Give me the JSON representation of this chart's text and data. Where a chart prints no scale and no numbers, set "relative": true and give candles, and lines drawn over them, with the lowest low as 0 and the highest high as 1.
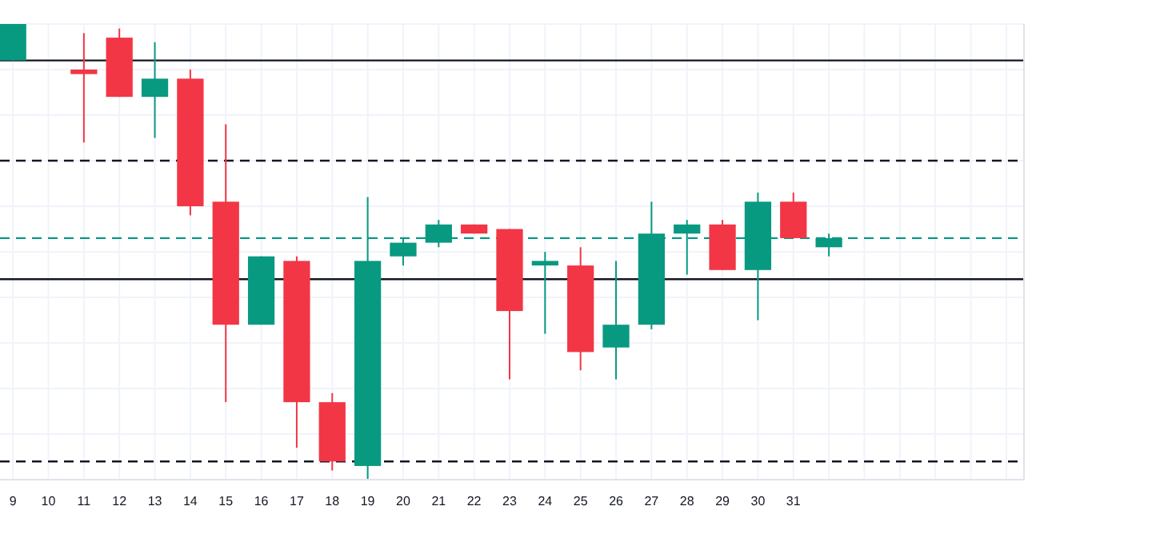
{
  "chart_data": {
    "type": "candlestick",
    "relative": true,
    "grid": true,
    "categories": [
      "9",
      "10",
      "11",
      "12",
      "13",
      "14",
      "15",
      "16",
      "17",
      "18",
      "19",
      "20",
      "21",
      "22",
      "23",
      "24",
      "25",
      "26",
      "27",
      "28",
      "29",
      "30",
      "31",
      null,
      null,
      null,
      null,
      null,
      null
    ],
    "ohlc": [
      [
        0.92,
        1.0,
        0.92,
        1.0
      ],
      null,
      [
        0.9,
        0.98,
        0.74,
        0.89
      ],
      [
        0.97,
        0.99,
        0.84,
        0.84
      ],
      [
        0.84,
        0.96,
        0.75,
        0.88
      ],
      [
        0.88,
        0.9,
        0.58,
        0.6
      ],
      [
        0.61,
        0.78,
        0.17,
        0.34
      ],
      [
        0.34,
        0.49,
        0.34,
        0.49
      ],
      [
        0.48,
        0.49,
        0.07,
        0.17
      ],
      [
        0.17,
        0.19,
        0.02,
        0.04
      ],
      [
        0.03,
        0.62,
        0,
        0.48
      ],
      [
        0.49,
        0.53,
        0.47,
        0.52
      ],
      [
        0.52,
        0.57,
        0.51,
        0.56
      ],
      [
        0.56,
        0.56,
        0.54,
        0.54
      ],
      [
        0.55,
        0.55,
        0.22,
        0.37
      ],
      [
        0.47,
        0.5,
        0.32,
        0.48
      ],
      [
        0.47,
        0.51,
        0.24,
        0.28
      ],
      [
        0.29,
        0.48,
        0.22,
        0.34
      ],
      [
        0.34,
        0.61,
        0.33,
        0.54
      ],
      [
        0.54,
        0.57,
        0.45,
        0.56
      ],
      [
        0.56,
        0.57,
        0.46,
        0.46
      ],
      [
        0.46,
        0.63,
        0.35,
        0.61
      ],
      [
        0.61,
        0.63,
        0.53,
        0.53
      ],
      [
        0.51,
        0.54,
        0.49,
        0.53
      ],
      null,
      null,
      null,
      null,
      null
    ],
    "colors": [
      "#089981",
      null,
      "#f23645",
      "#f23645",
      "#089981",
      "#f23645",
      "#f23645",
      "#089981",
      "#f23645",
      "#f23645",
      "#089981",
      "#089981",
      "#089981",
      "#f23645",
      "#f23645",
      "#089981",
      "#f23645",
      "#089981",
      "#089981",
      "#089981",
      "#f23645",
      "#089981",
      "#f23645",
      "#089981",
      null,
      null,
      null,
      null,
      null
    ],
    "ref_lines": [
      {
        "axis": "y",
        "value": 0.92,
        "color": "#131722",
        "line_style": "solid"
      },
      {
        "axis": "y",
        "value": 0.7,
        "color": "#131722",
        "line_style": "dashed"
      },
      {
        "axis": "y",
        "value": 0.53,
        "color": "#089981",
        "line_style": "dashed"
      },
      {
        "axis": "y",
        "value": 0.44,
        "color": "#131722",
        "line_style": "solid"
      },
      {
        "axis": "y",
        "value": 0.04,
        "color": "#131722",
        "line_style": "dashed"
      }
    ]
  }
}
